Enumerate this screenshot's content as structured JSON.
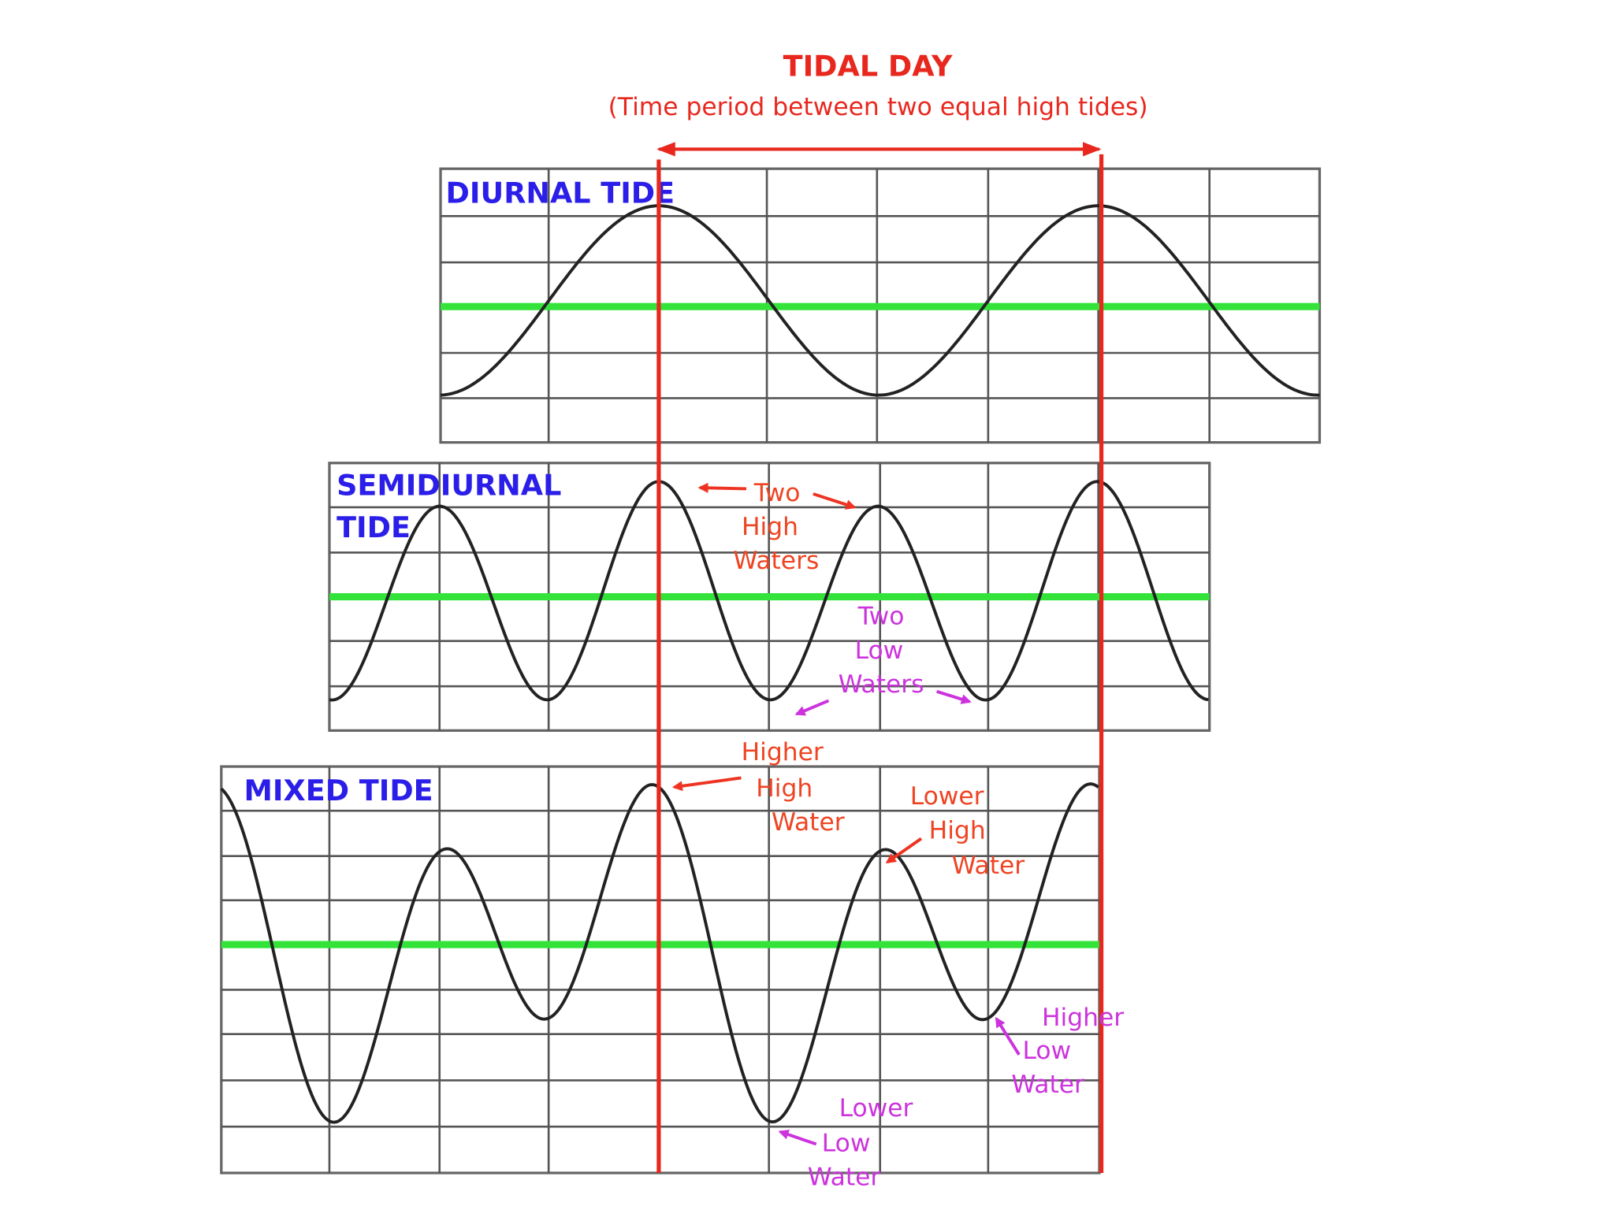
{
  "header": {
    "title": "TIDAL DAY",
    "subtitle": "(Time period between two equal high tides)"
  },
  "panels": [
    {
      "label": [
        "DIURNAL TIDE"
      ]
    },
    {
      "label": [
        "SEMIDIURNAL",
        "TIDE"
      ]
    },
    {
      "label": [
        "MIXED TIDE"
      ]
    }
  ],
  "annotations": [
    {
      "lines": [
        "Two",
        "High",
        "Waters"
      ]
    },
    {
      "lines": [
        "Two",
        "Low",
        "Waters"
      ]
    },
    {
      "lines": [
        "Higher",
        "High",
        "Water"
      ]
    },
    {
      "lines": [
        "Lower",
        "High",
        "Water"
      ]
    },
    {
      "lines": [
        "Higher",
        "Low",
        "Water"
      ]
    },
    {
      "lines": [
        "Lower",
        "Low",
        "Water"
      ]
    }
  ]
}
